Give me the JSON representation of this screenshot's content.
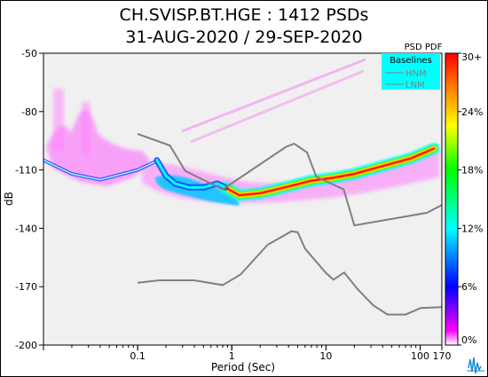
{
  "chart_data": {
    "type": "heatmap",
    "title": "CH.SVISP.BT.HGE : 1412 PSDs",
    "subtitle": "31-AUG-2020 / 29-SEP-2020",
    "xlabel": "Period (Sec)",
    "ylabel": "dB",
    "x_scale": "log",
    "xlim": [
      0.01,
      170
    ],
    "ylim": [
      -200,
      -50
    ],
    "x_ticks": [
      {
        "value": 0.1,
        "label": "0.1"
      },
      {
        "value": 1,
        "label": "1"
      },
      {
        "value": 10,
        "label": "10"
      },
      {
        "value": 100,
        "label": "100"
      },
      {
        "value": 170,
        "label": "170"
      }
    ],
    "y_ticks": [
      -50,
      -80,
      -110,
      -140,
      -170,
      -200
    ],
    "colorbar": {
      "title": "PSD PDF",
      "labels": [
        "0%",
        "6%",
        "12%",
        "18%",
        "24%",
        "30+"
      ],
      "colors": [
        "#ffffff",
        "#ff00ff",
        "#0000ff",
        "#00ffff",
        "#00ff00",
        "#ffff00",
        "#ff8000",
        "#ff0000"
      ]
    },
    "legend": {
      "title": "Baselines",
      "position": "top-right",
      "background": "#00ffff",
      "entries": [
        "HNM",
        "LNM"
      ]
    },
    "series": [
      {
        "name": "HNM",
        "color": "#808080",
        "points": [
          [
            0.1,
            -91.5
          ],
          [
            0.22,
            -97.4
          ],
          [
            0.32,
            -110.5
          ],
          [
            0.8,
            -120
          ],
          [
            3.8,
            -98
          ],
          [
            4.6,
            -96.5
          ],
          [
            6.3,
            -101
          ],
          [
            7.9,
            -113.5
          ],
          [
            15.4,
            -120
          ],
          [
            20,
            -138.5
          ],
          [
            118,
            -132
          ],
          [
            170,
            -128
          ]
        ]
      },
      {
        "name": "LNM",
        "color": "#808080",
        "points": [
          [
            0.1,
            -168
          ],
          [
            0.17,
            -166.7
          ],
          [
            0.4,
            -166.7
          ],
          [
            0.8,
            -169.2
          ],
          [
            1.24,
            -163.7
          ],
          [
            2.4,
            -148.5
          ],
          [
            4.3,
            -141.5
          ],
          [
            5,
            -142
          ],
          [
            6,
            -150.5
          ],
          [
            10,
            -163
          ],
          [
            12,
            -166.4
          ],
          [
            15.6,
            -162.7
          ],
          [
            21.9,
            -171.5
          ],
          [
            31.6,
            -179.5
          ],
          [
            45,
            -184.3
          ],
          [
            70,
            -184.3
          ],
          [
            101,
            -181
          ],
          [
            170,
            -180.5
          ]
        ]
      }
    ],
    "density_ridges": [
      {
        "level": "high",
        "points": [
          [
            0.85,
            -119
          ],
          [
            1.2,
            -123
          ],
          [
            2,
            -122
          ],
          [
            4,
            -118.5
          ],
          [
            7,
            -115.5
          ],
          [
            12,
            -114
          ],
          [
            20,
            -112
          ],
          [
            40,
            -108
          ],
          [
            80,
            -104
          ],
          [
            140,
            -99
          ]
        ]
      },
      {
        "level": "mid",
        "points": [
          [
            0.16,
            -105
          ],
          [
            0.2,
            -113
          ],
          [
            0.25,
            -117
          ],
          [
            0.35,
            -119
          ],
          [
            0.5,
            -119
          ],
          [
            0.7,
            -117
          ],
          [
            0.85,
            -119
          ]
        ]
      },
      {
        "level": "low",
        "points": [
          [
            0.01,
            -105
          ],
          [
            0.02,
            -112
          ],
          [
            0.04,
            -115
          ],
          [
            0.1,
            -110
          ],
          [
            0.15,
            -106
          ]
        ]
      }
    ]
  }
}
